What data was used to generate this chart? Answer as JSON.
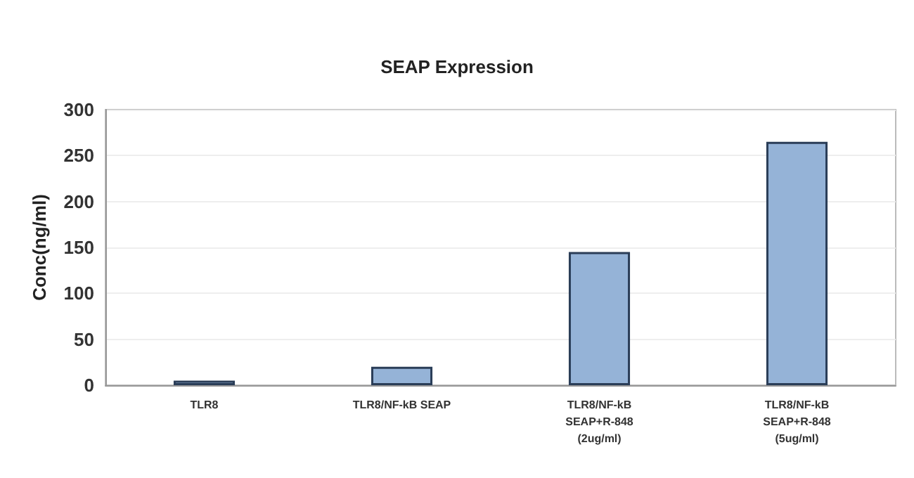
{
  "chart_data": {
    "type": "bar",
    "title": "SEAP Expression",
    "ylabel": "Conc(ng/ml)",
    "categories": [
      "TLR8",
      "TLR8/NF-kB SEAP",
      "TLR8/NF-kB\nSEAP+R-848\n(2ug/ml)",
      "TLR8/NF-kB\nSEAP+R-848\n(5ug/ml)"
    ],
    "values": [
      5,
      20,
      145,
      265
    ],
    "color": "#95b3d7",
    "ylim": [
      0,
      300
    ],
    "yticks": [
      0,
      50,
      100,
      150,
      200,
      250,
      300
    ],
    "grid": "y"
  }
}
